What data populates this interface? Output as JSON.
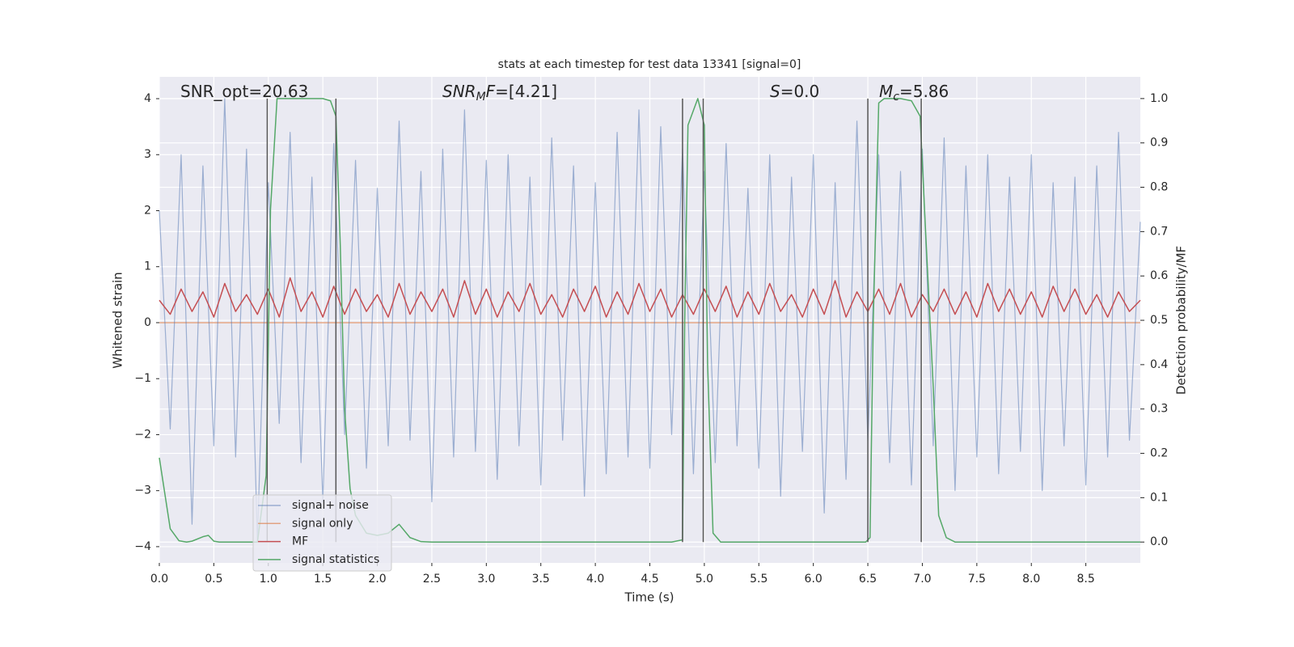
{
  "chart_data": {
    "type": "line",
    "title": "stats at each timestep for test data 13341 [signal=0]",
    "xlabel": "Time (s)",
    "ylabel": "Whitened strain",
    "y2label": "Detection probability/MF",
    "grid": true,
    "legend": "lower left",
    "xlim": [
      0,
      9.0
    ],
    "ylim": [
      -4.29,
      4.39
    ],
    "y2lim": [
      -0.047,
      1.049
    ],
    "xticks": [
      {
        "value": 0,
        "label": "0.0"
      },
      0.5,
      {
        "value": 1,
        "label": "1.0"
      },
      1.5,
      {
        "value": 2,
        "label": "2.0"
      },
      2.5,
      {
        "value": 3,
        "label": "3.0"
      },
      3.5,
      {
        "value": 4,
        "label": "4.0"
      },
      4.5,
      {
        "value": 5,
        "label": "5.0"
      },
      5.5,
      {
        "value": 6,
        "label": "6.0"
      },
      6.5,
      {
        "value": 7,
        "label": "7.0"
      },
      7.5,
      {
        "value": 8,
        "label": "8.0"
      },
      8.5
    ],
    "yticks": [
      {
        "value": -4,
        "label": "−4"
      },
      {
        "value": -3,
        "label": "−3"
      },
      {
        "value": -2,
        "label": "−2"
      },
      {
        "value": -1,
        "label": "−1"
      },
      0,
      1,
      2,
      3,
      4
    ],
    "y2ticks": [
      {
        "value": 0,
        "label": "0.0"
      },
      0.1,
      0.2,
      0.3,
      0.4,
      0.5,
      0.6,
      0.7,
      0.8,
      0.9,
      {
        "value": 1,
        "label": "1.0"
      }
    ],
    "x": [
      0,
      0.1,
      0.2,
      0.3,
      0.4,
      0.5,
      0.6,
      0.7,
      0.8,
      0.9,
      1.0,
      1.1,
      1.2,
      1.3,
      1.4,
      1.5,
      1.6,
      1.7,
      1.8,
      1.9,
      2.0,
      2.1,
      2.2,
      2.3,
      2.4,
      2.5,
      2.6,
      2.7,
      2.8,
      2.9,
      3.0,
      3.1,
      3.2,
      3.3,
      3.4,
      3.5,
      3.6,
      3.7,
      3.8,
      3.9,
      4.0,
      4.1,
      4.2,
      4.3,
      4.4,
      4.5,
      4.6,
      4.7,
      4.8,
      4.9,
      5.0,
      5.1,
      5.2,
      5.3,
      5.4,
      5.5,
      5.6,
      5.7,
      5.8,
      5.9,
      6.0,
      6.1,
      6.2,
      6.3,
      6.4,
      6.5,
      6.6,
      6.7,
      6.8,
      6.9,
      7.0,
      7.1,
      7.2,
      7.3,
      7.4,
      7.5,
      7.6,
      7.7,
      7.8,
      7.9,
      8.0,
      8.1,
      8.2,
      8.3,
      8.4,
      8.5,
      8.6,
      8.7,
      8.8,
      8.9,
      9.0
    ],
    "series": [
      {
        "name": "signal+ noise",
        "color": "#4c72b0",
        "values": [
          2.0,
          -1.9,
          3.0,
          -3.6,
          2.8,
          -2.2,
          4.0,
          -2.4,
          3.1,
          -3.9,
          2.5,
          -1.8,
          3.4,
          -2.5,
          2.6,
          -3.2,
          3.2,
          -2.0,
          2.9,
          -2.6,
          2.4,
          -2.2,
          3.6,
          -2.1,
          2.7,
          -3.2,
          3.1,
          -2.4,
          3.8,
          -2.3,
          2.9,
          -2.8,
          3.0,
          -2.2,
          2.6,
          -2.9,
          3.3,
          -2.1,
          2.8,
          -3.1,
          2.5,
          -2.7,
          3.4,
          -2.4,
          3.8,
          -2.6,
          3.5,
          -2.0,
          3.1,
          -2.7,
          2.7,
          -2.5,
          3.2,
          -2.2,
          2.4,
          -2.6,
          3.0,
          -3.1,
          2.6,
          -2.3,
          3.0,
          -3.4,
          2.5,
          -2.8,
          3.6,
          -2.1,
          3.0,
          -2.5,
          2.7,
          -2.9,
          3.1,
          -2.2,
          3.3,
          -3.0,
          2.8,
          -2.4,
          3.0,
          -2.7,
          2.6,
          -2.3,
          3.0,
          -3.0,
          2.5,
          -2.2,
          2.6,
          -2.9,
          2.8,
          -2.4,
          3.4,
          -2.1,
          1.8
        ]
      },
      {
        "name": "signal only",
        "color": "#dd8452",
        "x": [
          0,
          9.0
        ],
        "values": [
          0,
          0
        ]
      },
      {
        "name": "MF",
        "color": "#c44e52",
        "values": [
          0.4,
          0.15,
          0.6,
          0.2,
          0.55,
          0.1,
          0.7,
          0.2,
          0.5,
          0.15,
          0.6,
          0.1,
          0.8,
          0.2,
          0.55,
          0.1,
          0.65,
          0.15,
          0.6,
          0.2,
          0.5,
          0.1,
          0.7,
          0.15,
          0.55,
          0.2,
          0.6,
          0.1,
          0.75,
          0.15,
          0.6,
          0.1,
          0.55,
          0.2,
          0.7,
          0.15,
          0.5,
          0.1,
          0.6,
          0.2,
          0.65,
          0.1,
          0.55,
          0.15,
          0.7,
          0.2,
          0.6,
          0.1,
          0.5,
          0.15,
          0.6,
          0.2,
          0.65,
          0.1,
          0.55,
          0.15,
          0.7,
          0.2,
          0.5,
          0.1,
          0.6,
          0.15,
          0.75,
          0.1,
          0.55,
          0.2,
          0.6,
          0.15,
          0.7,
          0.1,
          0.5,
          0.2,
          0.6,
          0.15,
          0.55,
          0.1,
          0.7,
          0.2,
          0.6,
          0.15,
          0.55,
          0.1,
          0.65,
          0.2,
          0.6,
          0.15,
          0.5,
          0.1,
          0.55,
          0.2,
          0.4
        ]
      },
      {
        "name": "signal statistics",
        "color": "#55a868",
        "axis": "y2",
        "x": [
          0,
          0.1,
          0.18,
          0.25,
          0.3,
          0.4,
          0.45,
          0.5,
          0.55,
          0.9,
          0.98,
          1.02,
          1.08,
          1.5,
          1.57,
          1.62,
          1.66,
          1.7,
          1.75,
          1.8,
          1.9,
          2.0,
          2.1,
          2.2,
          2.3,
          2.4,
          2.5,
          4.7,
          4.8,
          4.82,
          4.85,
          4.94,
          5.0,
          5.03,
          5.08,
          5.15,
          6.48,
          6.52,
          6.55,
          6.6,
          6.65,
          6.8,
          6.9,
          6.98,
          7.02,
          7.1,
          7.15,
          7.22,
          7.3,
          9.0
        ],
        "values": [
          0.19,
          0.03,
          0.003,
          0,
          0.002,
          0.012,
          0.015,
          0.002,
          0,
          0,
          0.15,
          0.75,
          1.0,
          1.0,
          0.995,
          0.96,
          0.67,
          0.3,
          0.12,
          0.06,
          0.02,
          0.015,
          0.02,
          0.04,
          0.01,
          0.001,
          0,
          0,
          0.005,
          0.5,
          0.94,
          1.0,
          0.94,
          0.4,
          0.02,
          0,
          0,
          0.01,
          0.5,
          0.99,
          1.0,
          1.0,
          0.995,
          0.96,
          0.75,
          0.35,
          0.06,
          0.01,
          0,
          0
        ]
      }
    ],
    "vlines": {
      "color": "#555555",
      "x": [
        0.99,
        1.62,
        4.8,
        4.99,
        6.5,
        6.99
      ]
    },
    "annotations": [
      [
        "SNR_opt=20.63"
      ],
      [
        "SNR",
        "M",
        "F",
        "=[4.21]"
      ],
      [
        "S",
        "=0.0"
      ],
      [
        "M",
        "c",
        "=5.86"
      ]
    ]
  }
}
